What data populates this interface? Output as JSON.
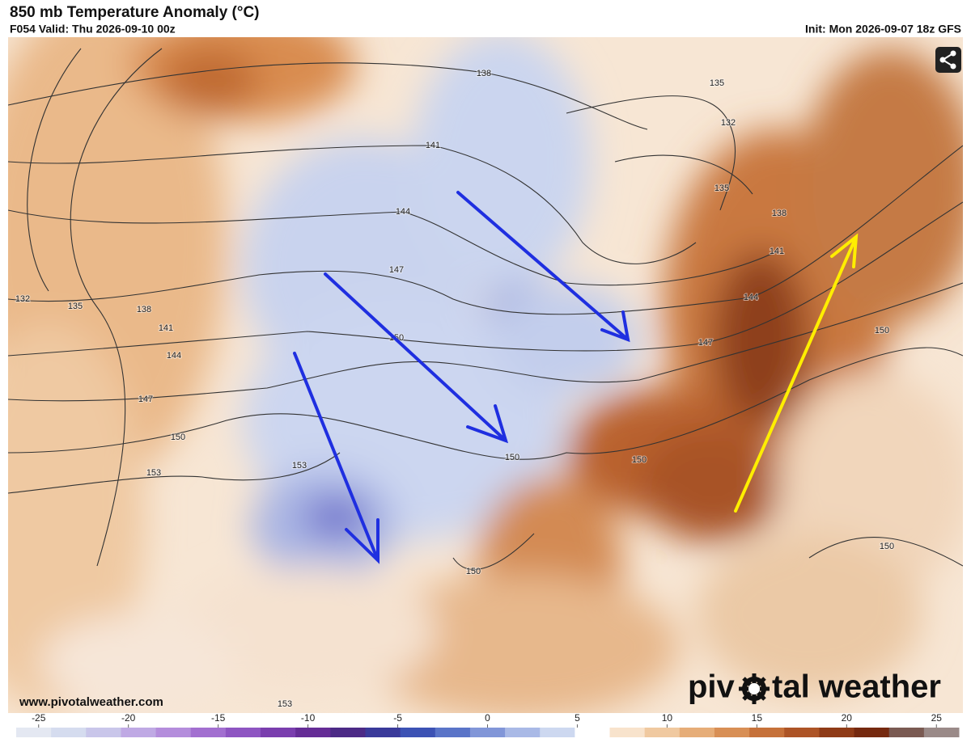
{
  "header": {
    "title": "850 mb Temperature Anomaly (°C)",
    "valid": "F054 Valid: Thu 2026-09-10 00z",
    "init": "Init: Mon 2026-09-07 18z GFS"
  },
  "map": {
    "contour_labels": [
      "138",
      "141",
      "144",
      "147",
      "150",
      "150",
      "150",
      "150",
      "150",
      "150",
      "153",
      "153",
      "153",
      "150",
      "147",
      "144",
      "141",
      "138",
      "135",
      "132",
      "135",
      "132",
      "135",
      "138",
      "141",
      "144",
      "147"
    ]
  },
  "footer": {
    "website": "www.pivotalweather.com",
    "logo_left": "piv",
    "logo_right": "tal weather"
  },
  "colorbar": {
    "lim": [
      -26.25,
      26.25
    ],
    "ticks": [
      -25,
      -20,
      -15,
      -10,
      -5,
      0,
      5,
      10,
      15,
      20,
      25
    ],
    "colors": [
      "#e4e8f2",
      "#d5dcef",
      "#c9c6ea",
      "#bfa9e4",
      "#b48ddc",
      "#a26fd0",
      "#8e55c2",
      "#7a3eae",
      "#652c96",
      "#4c2a86",
      "#3a3a9a",
      "#3c52b4",
      "#5a74c8",
      "#8196d8",
      "#a9b9e6",
      "#cdd8f0",
      "#ffffff",
      "#f8e3cc",
      "#f0c9a0",
      "#e6ad78",
      "#d88f55",
      "#c6713a",
      "#ad5426",
      "#8f3b17",
      "#75290f",
      "#7a5a52",
      "#9a8a88"
    ]
  }
}
